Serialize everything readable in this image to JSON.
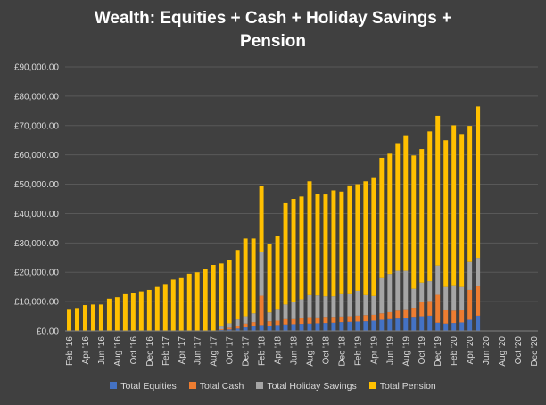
{
  "chart_data": {
    "type": "bar",
    "stacked": true,
    "title_line1": "Wealth: Equities + Cash + Holiday Savings +",
    "title_line2": "Pension",
    "xlabel": "",
    "ylabel": "",
    "ylim": [
      0,
      90000
    ],
    "y_ticks": [
      "£0.00",
      "£10,000.00",
      "£20,000.00",
      "£30,000.00",
      "£40,000.00",
      "£50,000.00",
      "£60,000.00",
      "£70,000.00",
      "£80,000.00",
      "£90,000.00"
    ],
    "grid": true,
    "legend_position": "bottom",
    "categories": [
      "Feb '16",
      "Mar '16",
      "Apr '16",
      "May '16",
      "Jun '16",
      "Jul '16",
      "Aug '16",
      "Sep '16",
      "Oct '16",
      "Nov '16",
      "Dec '16",
      "Jan '17",
      "Feb '17",
      "Mar '17",
      "Apr '17",
      "May '17",
      "Jun '17",
      "Jul '17",
      "Aug '17",
      "Sep '17",
      "Oct '17",
      "Nov '17",
      "Dec '17",
      "Jan '18",
      "Feb '18",
      "Mar '18",
      "Apr '18",
      "May '18",
      "Jun '18",
      "Jul '18",
      "Aug '18",
      "Sep '18",
      "Oct '18",
      "Nov '18",
      "Dec '18",
      "Jan '19",
      "Feb '19",
      "Mar '19",
      "Apr '19",
      "May '19",
      "Jun '19",
      "Jul '19",
      "Aug '19",
      "Sep '19",
      "Oct '19",
      "Nov '19",
      "Dec '19",
      "Jan '20",
      "Feb '20",
      "Mar '20",
      "Apr '20",
      "May '20",
      "Jun '20",
      "Jul '20",
      "Aug '20",
      "Sep '20",
      "Oct '20",
      "Nov '20",
      "Dec '20"
    ],
    "tick_labels": [
      "Feb '16",
      "Apr '16",
      "Jun '16",
      "Aug '16",
      "Oct '16",
      "Dec '16",
      "Feb '17",
      "Apr '17",
      "Jun '17",
      "Aug '17",
      "Oct '17",
      "Dec '17",
      "Feb '18",
      "Apr '18",
      "Jun '18",
      "Aug '18",
      "Oct '18",
      "Dec '18",
      "Feb '19",
      "Apr '19",
      "Jun '19",
      "Aug '19",
      "Oct '19",
      "Dec '19",
      "Feb '20",
      "Apr '20",
      "Jun '20",
      "Aug '20",
      "Oct '20",
      "Dec '20"
    ],
    "series": [
      {
        "name": "Total Equities",
        "color": "#4472c4",
        "values": [
          0,
          0,
          0,
          0,
          0,
          0,
          0,
          0,
          0,
          0,
          0,
          0,
          0,
          0,
          0,
          0,
          0,
          0,
          0,
          300,
          500,
          800,
          1200,
          1500,
          2000,
          1800,
          2000,
          2200,
          2300,
          2400,
          2500,
          2600,
          2700,
          2800,
          3000,
          3100,
          3200,
          3300,
          3500,
          3800,
          4000,
          4200,
          4500,
          4800,
          5000,
          5200,
          2800,
          2500,
          2700,
          2900,
          3800,
          5200,
          null,
          null,
          null,
          null,
          null,
          null,
          null
        ]
      },
      {
        "name": "Total Cash",
        "color": "#ed7d31",
        "values": [
          0,
          0,
          0,
          0,
          0,
          0,
          0,
          0,
          0,
          0,
          0,
          0,
          0,
          0,
          0,
          0,
          0,
          0,
          0,
          300,
          600,
          900,
          1300,
          1500,
          10000,
          1500,
          1500,
          1800,
          1700,
          1900,
          2200,
          2000,
          2100,
          2000,
          1900,
          1900,
          2000,
          2100,
          2000,
          2200,
          2400,
          2700,
          2900,
          3100,
          5000,
          5000,
          9500,
          4800,
          4200,
          4100,
          10200,
          10000,
          null,
          null,
          null,
          null,
          null,
          null,
          null
        ]
      },
      {
        "name": "Total Holiday Savings",
        "color": "#a5a5a5",
        "values": [
          0,
          0,
          0,
          0,
          0,
          0,
          0,
          0,
          0,
          0,
          0,
          0,
          0,
          0,
          0,
          0,
          0,
          0,
          0,
          900,
          1500,
          2200,
          2500,
          3000,
          15000,
          3000,
          4000,
          5000,
          6000,
          6500,
          7500,
          7500,
          7000,
          7000,
          7600,
          7500,
          8500,
          6800,
          6400,
          12000,
          13000,
          13600,
          13100,
          6500,
          6500,
          6800,
          10000,
          7700,
          8400,
          8000,
          9500,
          9700,
          null,
          null,
          null,
          null,
          null,
          null,
          null
        ]
      },
      {
        "name": "Total Pension",
        "color": "#ffc000",
        "values": [
          7500,
          7800,
          8800,
          9000,
          9000,
          11000,
          11500,
          12500,
          13000,
          13500,
          14000,
          15000,
          16000,
          17500,
          18000,
          19500,
          20000,
          21000,
          22500,
          21500,
          21500,
          23700,
          26500,
          25500,
          22500,
          23200,
          25000,
          34500,
          35000,
          35000,
          38800,
          34500,
          34700,
          36100,
          35000,
          37100,
          36300,
          38800,
          40500,
          41000,
          41000,
          43500,
          46200,
          45400,
          45500,
          51000,
          51000,
          50000,
          54800,
          52100,
          46400,
          51600,
          null,
          null,
          null,
          null,
          null,
          null,
          null
        ]
      }
    ]
  }
}
